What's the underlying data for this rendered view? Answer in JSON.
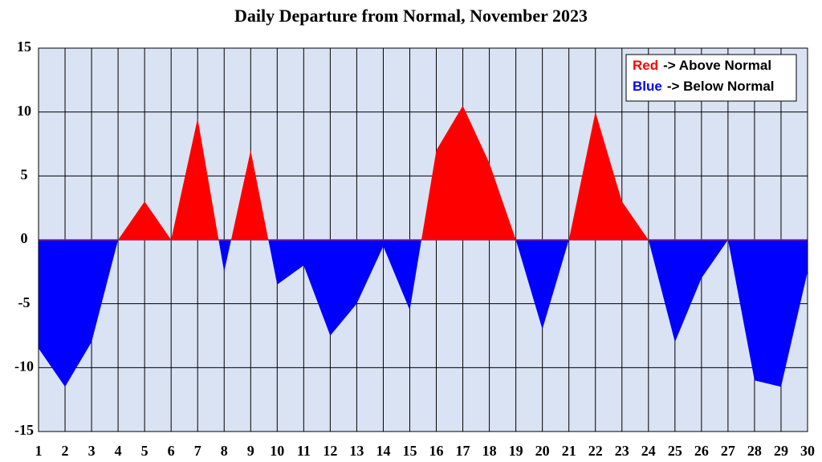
{
  "chart_data": {
    "type": "area",
    "title": "Daily Departure from Normal, November 2023",
    "x": [
      1,
      2,
      3,
      4,
      5,
      6,
      7,
      8,
      9,
      10,
      11,
      12,
      13,
      14,
      15,
      16,
      17,
      18,
      19,
      20,
      21,
      22,
      23,
      24,
      25,
      26,
      27,
      28,
      29,
      30
    ],
    "values": [
      -8.5,
      -11.5,
      -8,
      0,
      3,
      0,
      9.5,
      -2.5,
      7,
      -3.5,
      -2,
      -7.5,
      -5,
      -0.5,
      -5.5,
      7,
      10.5,
      6,
      0,
      -7,
      0,
      10,
      3,
      0,
      -8,
      -3,
      0,
      -11,
      -11.5,
      -2.5
    ],
    "above_color": "#ff0000",
    "below_color": "#0000ff",
    "xlim": [
      1,
      30
    ],
    "xticks": [
      1,
      2,
      3,
      4,
      5,
      6,
      7,
      8,
      9,
      10,
      11,
      12,
      13,
      14,
      15,
      16,
      17,
      18,
      19,
      20,
      21,
      22,
      23,
      24,
      25,
      26,
      27,
      28,
      29,
      30
    ],
    "ylim": [
      -15,
      15
    ],
    "yticks": [
      -15,
      -10,
      -5,
      0,
      5,
      10,
      15
    ],
    "grid": true,
    "legend_position": "upper right",
    "legend": [
      {
        "key": "Red",
        "label": "-> Above Normal",
        "color": "#ff0000"
      },
      {
        "key": "Blue",
        "label": "-> Below Normal",
        "color": "#0000ff"
      }
    ]
  }
}
